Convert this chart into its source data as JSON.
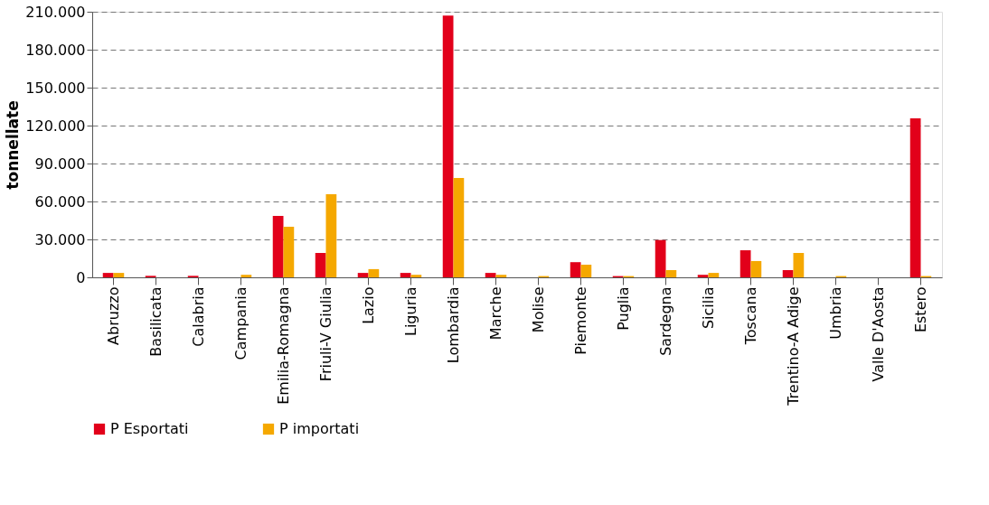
{
  "chart_data": {
    "type": "bar",
    "ylabel": "tonnellate",
    "categories": [
      "Abruzzo",
      "Basilicata",
      "Calabria",
      "Campania",
      "Emilia-Romagna",
      "Friuli-V Giulia",
      "Lazio",
      "Liguria",
      "Lombardia",
      "Marche",
      "Molise",
      "Piemonte",
      "Puglia",
      "Sardegna",
      "Sicilia",
      "Toscana",
      "Trentino-A Adige",
      "Umbria",
      "Valle D'Aosta",
      "Estero"
    ],
    "series": [
      {
        "name": "P Esportati",
        "color": "#e2001a",
        "values": [
          3500,
          1200,
          1200,
          0,
          48500,
          19300,
          3500,
          3500,
          207000,
          3500,
          0,
          12000,
          1000,
          29500,
          2000,
          21400,
          5700,
          0,
          0,
          125700
        ]
      },
      {
        "name": "P importati",
        "color": "#f5a800",
        "values": [
          3500,
          0,
          0,
          2000,
          40000,
          65700,
          6500,
          2000,
          78500,
          2000,
          1000,
          10000,
          1000,
          5700,
          3500,
          12900,
          19300,
          1000,
          0,
          1000
        ]
      }
    ],
    "ylim": [
      0,
      210000
    ],
    "yticks": [
      {
        "value": 0,
        "label": "0"
      },
      {
        "value": 30000,
        "label": "30.000"
      },
      {
        "value": 60000,
        "label": "60.000"
      },
      {
        "value": 90000,
        "label": "90.000"
      },
      {
        "value": 120000,
        "label": "120.000"
      },
      {
        "value": 150000,
        "label": "150.000"
      },
      {
        "value": 180000,
        "label": "180.000"
      },
      {
        "value": 210000,
        "label": "210.000"
      }
    ],
    "grid": "y",
    "legend": "bottom"
  }
}
